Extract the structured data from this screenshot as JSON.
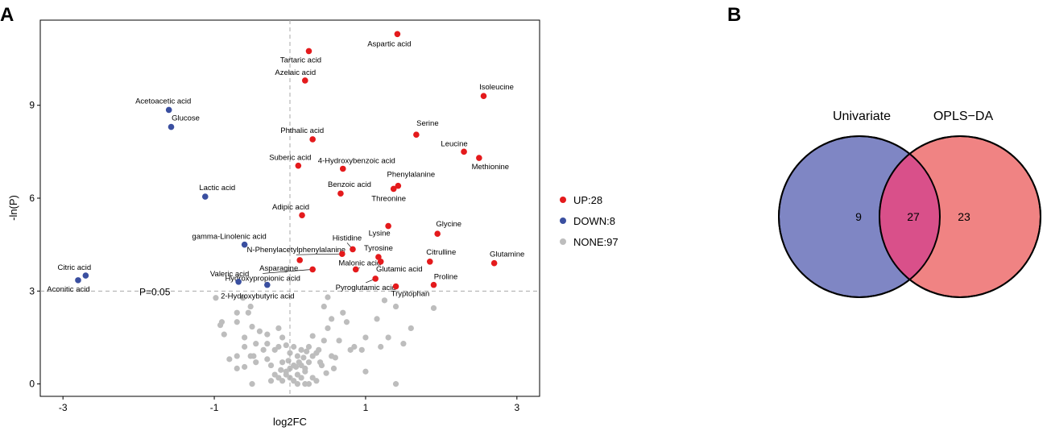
{
  "panel_labels": {
    "left": "A",
    "right": "B"
  },
  "chart_data": [
    {
      "type": "scatter",
      "subtype": "volcano",
      "xlabel": "log2FC",
      "ylabel": "-ln(P)",
      "xlim": [
        -3.3,
        3.3
      ],
      "ylim": [
        -0.4,
        11.75
      ],
      "xticks": [
        -3,
        -1,
        1,
        3
      ],
      "xtick_labels": [
        "-3",
        "-1",
        "1",
        "3"
      ],
      "yticks": [
        0,
        3,
        6,
        9
      ],
      "ytick_labels": [
        "0",
        "3",
        "6",
        "9"
      ],
      "grid": false,
      "threshold": {
        "y": 3.0,
        "x": 0.0,
        "label": "P=0.05"
      },
      "legend": {
        "placement": "right",
        "entries": [
          {
            "key": "up",
            "label": "UP:28",
            "color": "#e41a1c"
          },
          {
            "key": "down",
            "label": "DOWN:8",
            "color": "#3a4fa0"
          },
          {
            "key": "none",
            "label": "NONE:97",
            "color": "#bdbdbd"
          }
        ]
      },
      "series": [
        {
          "name": "UP:28",
          "key": "up",
          "color": "#e41a1c",
          "points": [
            {
              "label": "Aspartic acid",
              "x": 1.42,
              "y": 11.3
            },
            {
              "label": "Tartaric acid",
              "x": 0.25,
              "y": 10.75
            },
            {
              "label": "Azelaic acid",
              "x": 0.2,
              "y": 9.8
            },
            {
              "label": "Isoleucine",
              "x": 2.56,
              "y": 9.3
            },
            {
              "label": "Phthalic acid",
              "x": 0.3,
              "y": 7.9
            },
            {
              "label": "Serine",
              "x": 1.67,
              "y": 8.05
            },
            {
              "label": "Leucine",
              "x": 2.3,
              "y": 7.5
            },
            {
              "label": "Methionine",
              "x": 2.5,
              "y": 7.3
            },
            {
              "label": "Suberic acid",
              "x": 0.11,
              "y": 7.05
            },
            {
              "label": "4-Hydroxybenzoic acid",
              "x": 0.7,
              "y": 6.95
            },
            {
              "label": "Phenylalanine",
              "x": 1.43,
              "y": 6.4
            },
            {
              "label": "Threonine",
              "x": 1.37,
              "y": 6.3
            },
            {
              "label": "Benzoic acid",
              "x": 0.67,
              "y": 6.15
            },
            {
              "label": "Adipic acid",
              "x": 0.16,
              "y": 5.45
            },
            {
              "label": "Lysine",
              "x": 1.3,
              "y": 5.1
            },
            {
              "label": "Glycine",
              "x": 1.95,
              "y": 4.85
            },
            {
              "label": "Histidine",
              "x": 0.83,
              "y": 4.35
            },
            {
              "label": "Tyrosine",
              "x": 1.17,
              "y": 4.1
            },
            {
              "label": "Glutamic acid",
              "x": 1.2,
              "y": 3.95
            },
            {
              "label": "Citrulline",
              "x": 1.85,
              "y": 3.95
            },
            {
              "label": "Glutamine",
              "x": 2.7,
              "y": 3.9
            },
            {
              "label": "N-Phenylacetylphenylalanine",
              "x": 0.69,
              "y": 4.2
            },
            {
              "label": "Asparagine",
              "x": 0.13,
              "y": 4.0
            },
            {
              "label": "Malonic acid",
              "x": 0.87,
              "y": 3.7
            },
            {
              "label": "Hydroxypropionic acid",
              "x": 0.3,
              "y": 3.7
            },
            {
              "label": "Pyroglutamic acid",
              "x": 1.13,
              "y": 3.4
            },
            {
              "label": "Tryptophan",
              "x": 1.4,
              "y": 3.15
            },
            {
              "label": "Proline",
              "x": 1.9,
              "y": 3.2
            }
          ]
        },
        {
          "name": "DOWN:8",
          "key": "down",
          "color": "#3a4fa0",
          "points": [
            {
              "label": "Acetoacetic acid",
              "x": -1.6,
              "y": 8.85
            },
            {
              "label": "Glucose",
              "x": -1.57,
              "y": 8.3
            },
            {
              "label": "Lactic acid",
              "x": -1.12,
              "y": 6.05
            },
            {
              "label": "gamma-Linolenic acid",
              "x": -0.6,
              "y": 4.5
            },
            {
              "label": "Citric acid",
              "x": -2.7,
              "y": 3.5
            },
            {
              "label": "Aconitic acid",
              "x": -2.8,
              "y": 3.35
            },
            {
              "label": "Valeric acid",
              "x": -0.68,
              "y": 3.3
            },
            {
              "label": "2-Hydroxybutyric acid",
              "x": -0.3,
              "y": 3.2
            }
          ]
        },
        {
          "name": "NONE:97",
          "key": "none",
          "color": "#bdbdbd",
          "points": [
            [
              -0.98,
              2.78
            ],
            [
              -0.62,
              2.78
            ],
            [
              -0.52,
              2.5
            ],
            [
              -0.55,
              2.3
            ],
            [
              -0.7,
              2.3
            ],
            [
              -0.9,
              2.0
            ],
            [
              -0.7,
              2.0
            ],
            [
              -0.87,
              1.6
            ],
            [
              -0.5,
              1.85
            ],
            [
              -0.4,
              1.7
            ],
            [
              -0.6,
              1.5
            ],
            [
              -0.3,
              1.6
            ],
            [
              -0.3,
              1.3
            ],
            [
              -0.15,
              1.8
            ],
            [
              -0.1,
              1.5
            ],
            [
              -0.2,
              1.1
            ],
            [
              -0.45,
              1.3
            ],
            [
              -0.6,
              1.2
            ],
            [
              -0.7,
              0.9
            ],
            [
              -0.48,
              0.9
            ],
            [
              -0.52,
              0.9
            ],
            [
              -0.8,
              0.8
            ],
            [
              -0.3,
              0.8
            ],
            [
              -0.15,
              1.2
            ],
            [
              -0.05,
              1.25
            ],
            [
              0.05,
              1.2
            ],
            [
              -0.25,
              0.6
            ],
            [
              -0.1,
              0.7
            ],
            [
              -0.45,
              0.7
            ],
            [
              -0.5,
              0.0
            ],
            [
              -0.6,
              0.55
            ],
            [
              -0.7,
              0.5
            ],
            [
              0.15,
              1.1
            ],
            [
              0.25,
              1.2
            ],
            [
              0.0,
              1.0
            ],
            [
              0.1,
              0.9
            ],
            [
              0.2,
              0.5
            ],
            [
              0.25,
              0.7
            ],
            [
              0.05,
              0.6
            ],
            [
              0.1,
              0.3
            ],
            [
              0.0,
              0.2
            ],
            [
              -0.05,
              0.3
            ],
            [
              -0.1,
              0.1
            ],
            [
              -0.15,
              0.2
            ],
            [
              0.05,
              0.1
            ],
            [
              0.1,
              0.0
            ],
            [
              -0.2,
              0.3
            ],
            [
              -0.25,
              0.1
            ],
            [
              -0.05,
              0.4
            ],
            [
              0.0,
              0.5
            ],
            [
              0.15,
              0.2
            ],
            [
              0.2,
              0.0
            ],
            [
              0.3,
              0.2
            ],
            [
              0.25,
              0.0
            ],
            [
              0.35,
              0.1
            ],
            [
              0.4,
              0.7
            ],
            [
              0.45,
              1.4
            ],
            [
              0.5,
              1.8
            ],
            [
              0.45,
              2.5
            ],
            [
              0.5,
              2.8
            ],
            [
              0.35,
              1.0
            ],
            [
              0.55,
              0.9
            ],
            [
              0.6,
              0.85
            ],
            [
              0.65,
              1.4
            ],
            [
              0.7,
              2.3
            ],
            [
              0.75,
              2.0
            ],
            [
              0.3,
              0.9
            ],
            [
              0.8,
              1.1
            ],
            [
              0.2,
              0.4
            ],
            [
              0.15,
              0.6
            ],
            [
              0.38,
              1.1
            ],
            [
              0.42,
              0.6
            ],
            [
              -0.35,
              1.1
            ],
            [
              -0.12,
              0.45
            ],
            [
              0.08,
              0.55
            ],
            [
              0.18,
              0.85
            ],
            [
              0.48,
              0.35
            ],
            [
              -0.02,
              0.75
            ],
            [
              0.12,
              0.7
            ],
            [
              0.22,
              1.05
            ],
            [
              0.3,
              1.55
            ],
            [
              0.58,
              0.5
            ],
            [
              0.85,
              1.2
            ],
            [
              1.0,
              1.5
            ],
            [
              0.95,
              1.1
            ],
            [
              1.2,
              1.2
            ],
            [
              1.3,
              1.5
            ],
            [
              1.15,
              2.1
            ],
            [
              1.25,
              2.7
            ],
            [
              1.5,
              1.3
            ],
            [
              1.6,
              1.8
            ],
            [
              1.4,
              2.5
            ],
            [
              1.9,
              2.45
            ],
            [
              1.0,
              0.4
            ],
            [
              1.4,
              0.0
            ],
            [
              -0.92,
              1.9
            ],
            [
              0.55,
              2.1
            ]
          ]
        }
      ]
    },
    {
      "type": "venn",
      "sets": [
        {
          "name": "Univariate",
          "only": 9,
          "color": "#7f86c4"
        },
        {
          "name": "OPLS−DA",
          "only": 23,
          "color": "#f08383"
        }
      ],
      "intersection": 27,
      "intersection_color": "#d9508a"
    }
  ]
}
